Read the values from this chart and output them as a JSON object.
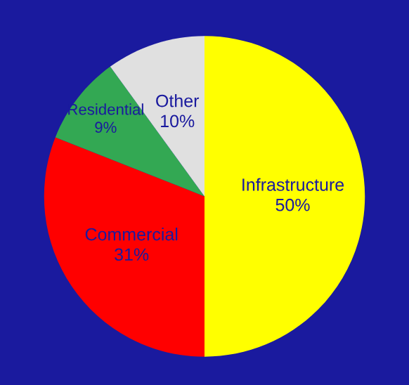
{
  "chart_data": {
    "type": "pie",
    "categories": [
      "Infrastructure",
      "Commercial",
      "Residential",
      "Other"
    ],
    "values": [
      50,
      31,
      9,
      10
    ],
    "colors": [
      "#ffff00",
      "#ff0000",
      "#33a853",
      "#e0e0e0"
    ],
    "value_labels": [
      "50%",
      "31%",
      "9%",
      "10%"
    ]
  }
}
